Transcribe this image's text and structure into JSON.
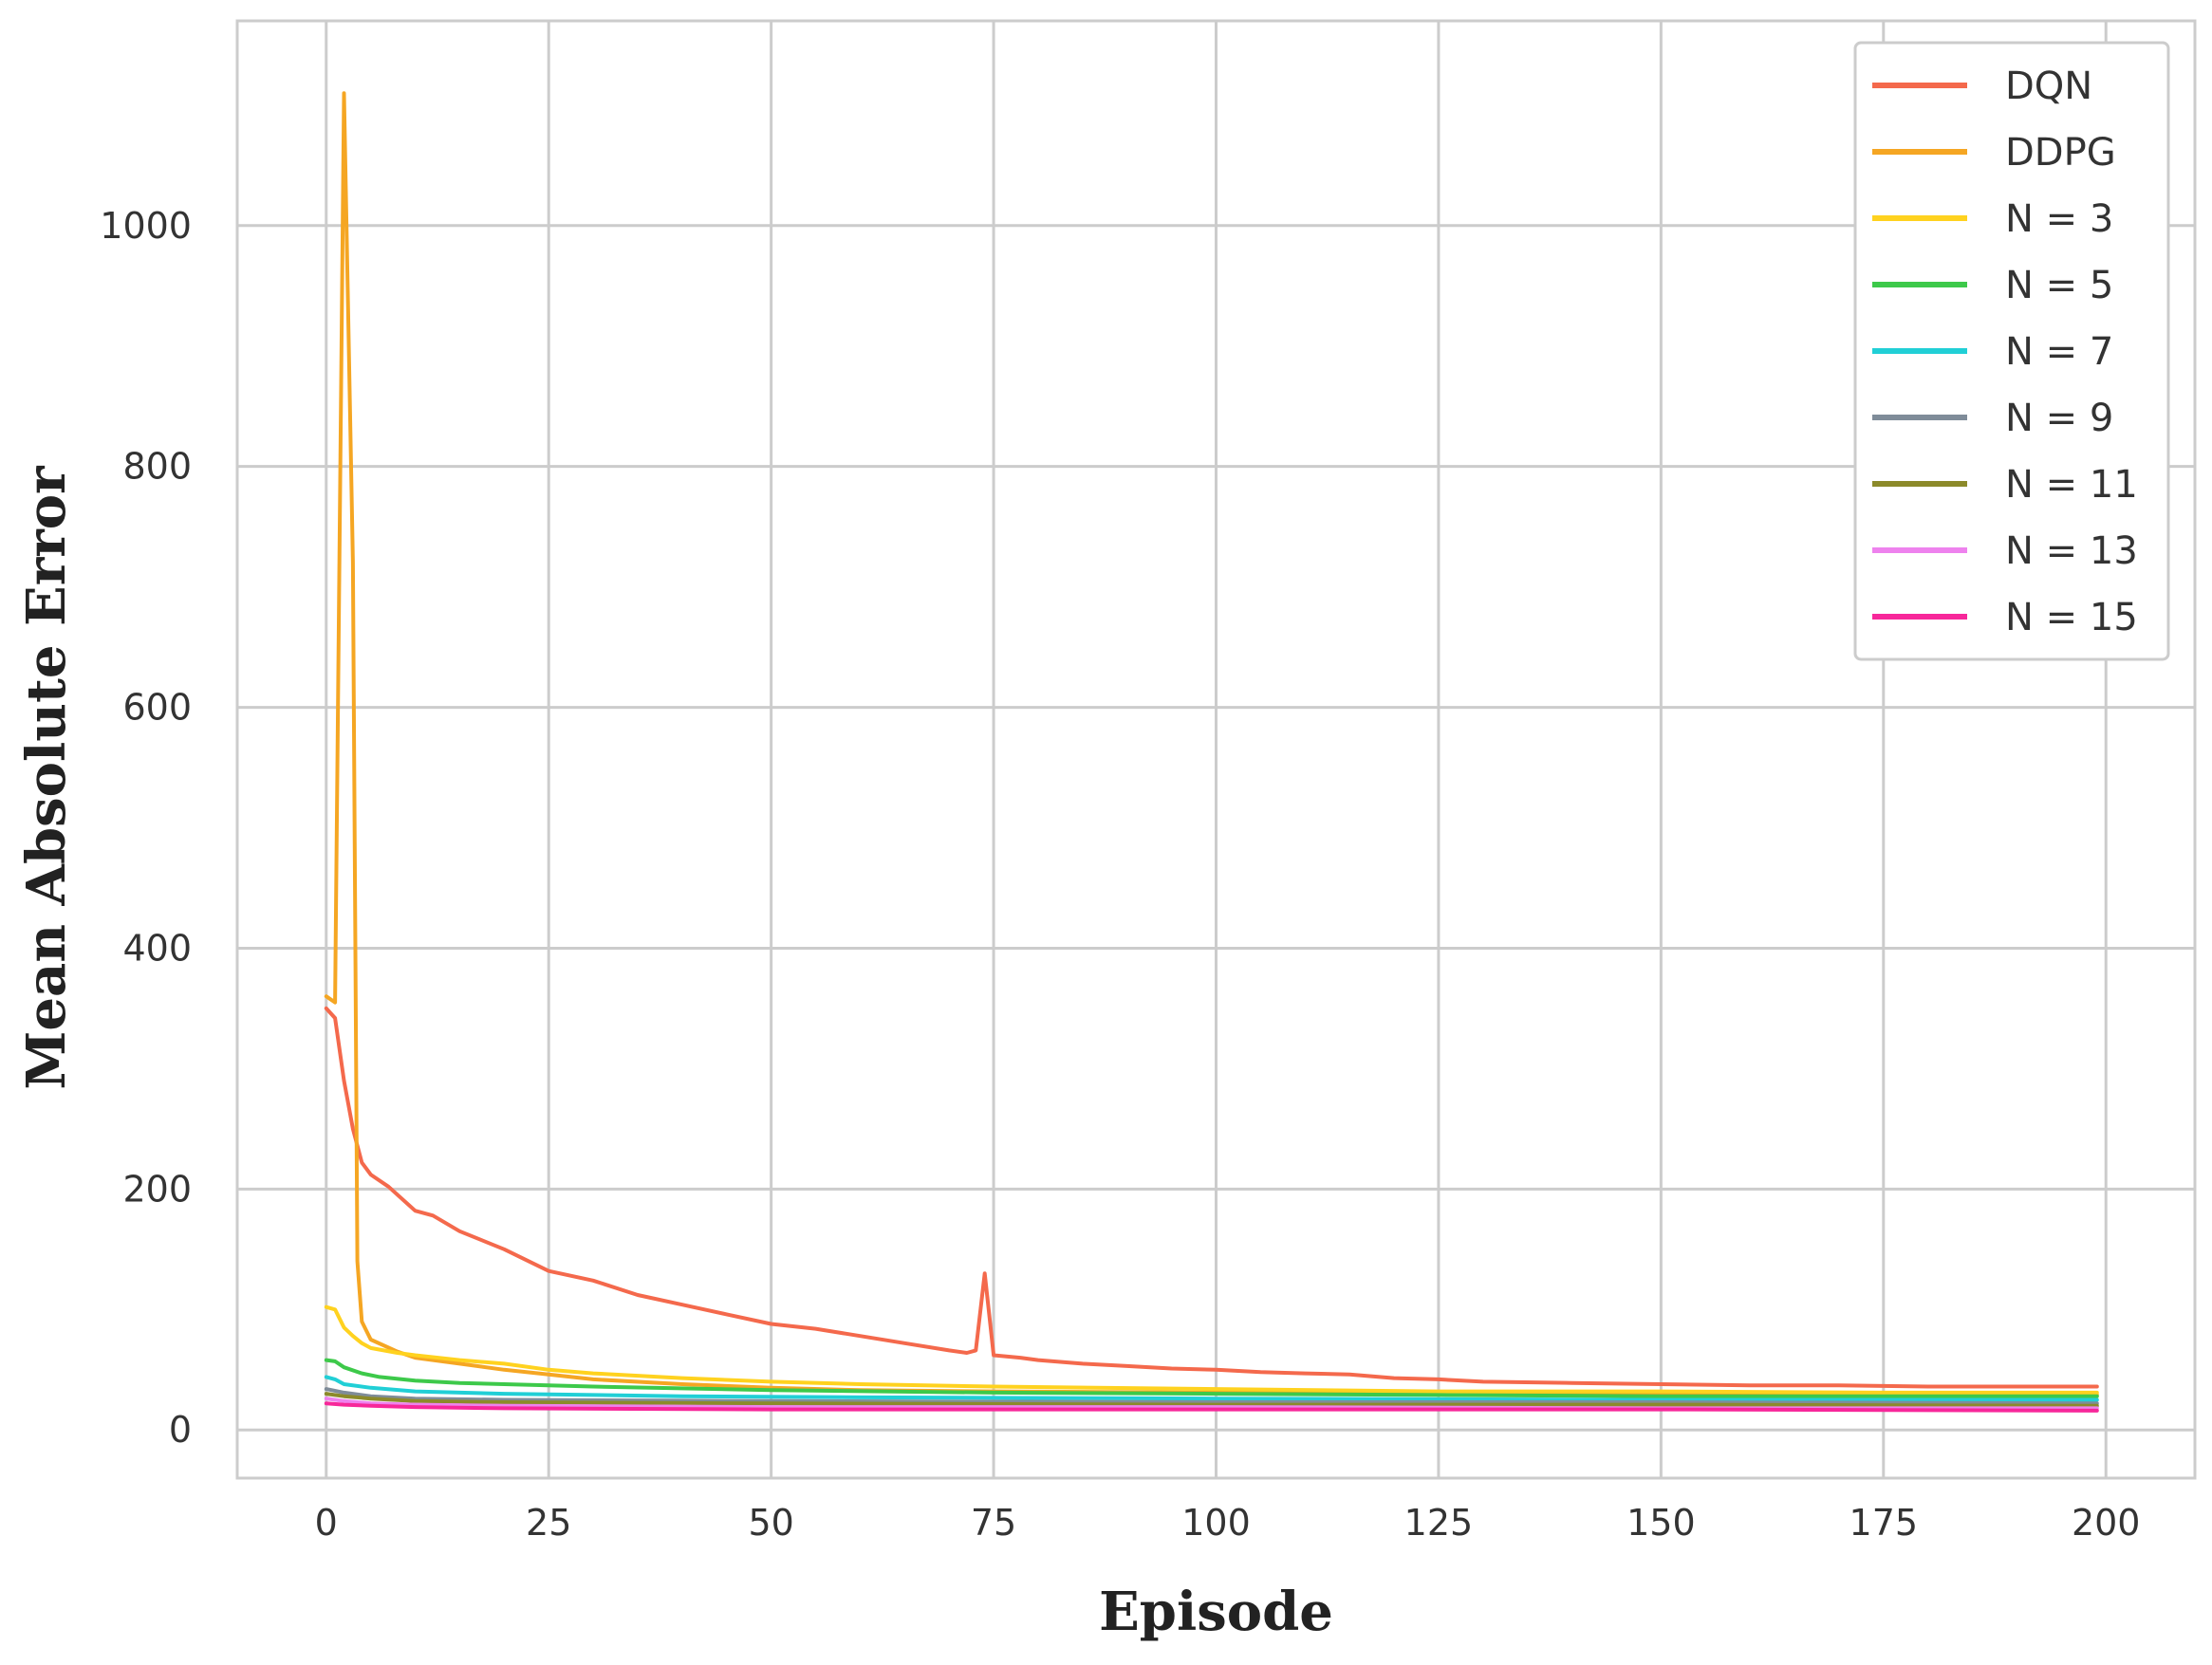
{
  "chart_data": {
    "type": "line",
    "title": "",
    "xlabel": "Episode",
    "ylabel": "Mean Absolute Error",
    "xlim": [
      -10,
      210
    ],
    "ylim": [
      -40,
      1170
    ],
    "xticks": [
      0,
      25,
      50,
      75,
      100,
      125,
      150,
      175,
      200
    ],
    "yticks": [
      0,
      200,
      400,
      600,
      800,
      1000
    ],
    "grid": true,
    "legend_position": "top-right",
    "series": [
      {
        "name": "DQN",
        "color": "#F4694C",
        "points": [
          [
            0,
            350
          ],
          [
            1,
            342
          ],
          [
            2,
            290
          ],
          [
            3,
            250
          ],
          [
            4,
            222
          ],
          [
            5,
            212
          ],
          [
            7,
            202
          ],
          [
            10,
            182
          ],
          [
            12,
            178
          ],
          [
            15,
            165
          ],
          [
            20,
            150
          ],
          [
            25,
            132
          ],
          [
            30,
            124
          ],
          [
            35,
            112
          ],
          [
            40,
            104
          ],
          [
            45,
            96
          ],
          [
            50,
            88
          ],
          [
            55,
            84
          ],
          [
            60,
            78
          ],
          [
            65,
            72
          ],
          [
            70,
            66
          ],
          [
            72,
            64
          ],
          [
            73,
            66
          ],
          [
            74,
            130
          ],
          [
            75,
            62
          ],
          [
            78,
            60
          ],
          [
            80,
            58
          ],
          [
            85,
            55
          ],
          [
            90,
            53
          ],
          [
            95,
            51
          ],
          [
            100,
            50
          ],
          [
            105,
            48
          ],
          [
            110,
            47
          ],
          [
            115,
            46
          ],
          [
            120,
            43
          ],
          [
            125,
            42
          ],
          [
            130,
            40
          ],
          [
            140,
            39
          ],
          [
            150,
            38
          ],
          [
            160,
            37
          ],
          [
            170,
            37
          ],
          [
            180,
            36
          ],
          [
            190,
            36
          ],
          [
            199,
            36
          ]
        ]
      },
      {
        "name": "DDPG",
        "color": "#F5A623",
        "points": [
          [
            0,
            360
          ],
          [
            1,
            355
          ],
          [
            2,
            1110
          ],
          [
            3,
            720
          ],
          [
            3.5,
            140
          ],
          [
            4,
            90
          ],
          [
            5,
            75
          ],
          [
            8,
            65
          ],
          [
            10,
            60
          ],
          [
            15,
            55
          ],
          [
            20,
            50
          ],
          [
            25,
            46
          ],
          [
            30,
            42
          ],
          [
            40,
            38
          ],
          [
            50,
            35
          ],
          [
            60,
            33
          ],
          [
            75,
            32
          ],
          [
            100,
            31
          ],
          [
            125,
            30
          ],
          [
            150,
            30
          ],
          [
            175,
            29
          ],
          [
            199,
            29
          ]
        ]
      },
      {
        "name": "N = 3",
        "color": "#FFD21F",
        "points": [
          [
            0,
            102
          ],
          [
            1,
            100
          ],
          [
            2,
            85
          ],
          [
            3,
            78
          ],
          [
            4,
            72
          ],
          [
            5,
            68
          ],
          [
            8,
            64
          ],
          [
            10,
            62
          ],
          [
            15,
            58
          ],
          [
            20,
            55
          ],
          [
            25,
            50
          ],
          [
            30,
            47
          ],
          [
            40,
            43
          ],
          [
            50,
            40
          ],
          [
            60,
            38
          ],
          [
            75,
            36
          ],
          [
            100,
            34
          ],
          [
            125,
            32
          ],
          [
            150,
            32
          ],
          [
            175,
            31
          ],
          [
            199,
            31
          ]
        ]
      },
      {
        "name": "N = 5",
        "color": "#3DC94A",
        "points": [
          [
            0,
            58
          ],
          [
            1,
            57
          ],
          [
            2,
            52
          ],
          [
            4,
            47
          ],
          [
            6,
            44
          ],
          [
            10,
            41
          ],
          [
            15,
            39
          ],
          [
            20,
            38
          ],
          [
            30,
            36
          ],
          [
            50,
            33
          ],
          [
            75,
            31
          ],
          [
            100,
            30
          ],
          [
            125,
            29
          ],
          [
            150,
            28
          ],
          [
            175,
            28
          ],
          [
            199,
            28
          ]
        ]
      },
      {
        "name": "N = 7",
        "color": "#21CFD6",
        "points": [
          [
            0,
            44
          ],
          [
            1,
            42
          ],
          [
            2,
            38
          ],
          [
            5,
            35
          ],
          [
            10,
            32
          ],
          [
            20,
            30
          ],
          [
            40,
            28
          ],
          [
            60,
            27
          ],
          [
            100,
            26
          ],
          [
            150,
            25
          ],
          [
            199,
            25
          ]
        ]
      },
      {
        "name": "N = 9",
        "color": "#7F8C99",
        "points": [
          [
            0,
            34
          ],
          [
            2,
            31
          ],
          [
            5,
            28
          ],
          [
            10,
            26
          ],
          [
            20,
            25
          ],
          [
            50,
            24
          ],
          [
            100,
            23
          ],
          [
            150,
            23
          ],
          [
            199,
            22
          ]
        ]
      },
      {
        "name": "N = 11",
        "color": "#8C8A2A",
        "points": [
          [
            0,
            30
          ],
          [
            2,
            28
          ],
          [
            5,
            26
          ],
          [
            10,
            24
          ],
          [
            20,
            23
          ],
          [
            50,
            22
          ],
          [
            100,
            21
          ],
          [
            150,
            21
          ],
          [
            199,
            20
          ]
        ]
      },
      {
        "name": "N = 13",
        "color": "#EE82EE",
        "points": [
          [
            0,
            26
          ],
          [
            2,
            24
          ],
          [
            5,
            22
          ],
          [
            10,
            21
          ],
          [
            20,
            20
          ],
          [
            50,
            19
          ],
          [
            100,
            19
          ],
          [
            150,
            18
          ],
          [
            199,
            18
          ]
        ]
      },
      {
        "name": "N = 15",
        "color": "#F7279A",
        "points": [
          [
            0,
            22
          ],
          [
            2,
            21
          ],
          [
            5,
            20
          ],
          [
            10,
            19
          ],
          [
            20,
            18
          ],
          [
            50,
            17
          ],
          [
            100,
            17
          ],
          [
            150,
            17
          ],
          [
            199,
            16
          ]
        ]
      }
    ]
  }
}
